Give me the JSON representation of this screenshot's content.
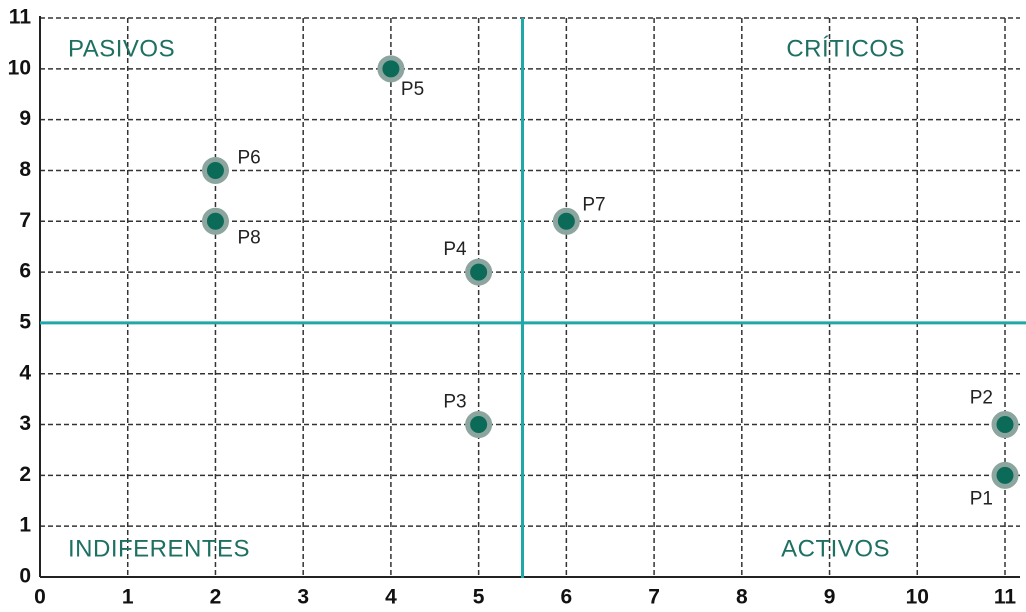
{
  "chart_data": {
    "type": "scatter",
    "labels": [
      "P1",
      "P2",
      "P3",
      "P4",
      "P5",
      "P6",
      "P7",
      "P8"
    ],
    "x": [
      11,
      11,
      5,
      5,
      4,
      2,
      6,
      2
    ],
    "values": [
      2,
      3,
      3,
      6,
      10,
      8,
      7,
      7
    ],
    "color": "#0b6b58",
    "xlim": [
      0,
      11
    ],
    "xticks": [
      0,
      1,
      2,
      3,
      4,
      5,
      6,
      7,
      8,
      9,
      10,
      11
    ],
    "ylim": [
      0,
      11
    ],
    "yticks": [
      0,
      1,
      2,
      3,
      4,
      5,
      6,
      7,
      8,
      9,
      10,
      11
    ],
    "grid": true,
    "quadrant_x": 5.5,
    "quadrant_y": 5,
    "quadrant_color": "#20a7a7",
    "quadrant_labels": [
      "PASIVOS",
      "CRÍTICOS",
      "INDIFERENTES",
      "ACTIVOS"
    ]
  }
}
